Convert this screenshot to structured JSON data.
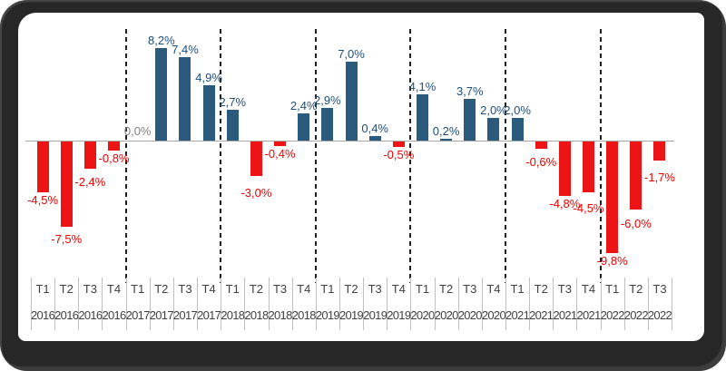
{
  "frame": {
    "background_color": "#272727",
    "panel_color": "#ffffff"
  },
  "chart_data": {
    "type": "bar",
    "title": "",
    "xlabel": "",
    "ylabel": "",
    "legend": "none",
    "grid": "off",
    "ylim": [
      -10.5,
      9
    ],
    "zero_line": true,
    "year_dividers": "dashed vertical lines between year groups",
    "decimal_style": "comma",
    "x_quarters": [
      "T1",
      "T2",
      "T3",
      "T4",
      "T1",
      "T2",
      "T3",
      "T4",
      "T1",
      "T2",
      "T3",
      "T4",
      "T1",
      "T2",
      "T3",
      "T4",
      "T1",
      "T2",
      "T3",
      "T4",
      "T1",
      "T2",
      "T3",
      "T4",
      "T1",
      "T2",
      "T3"
    ],
    "x_years": [
      "2016",
      "2016",
      "2016",
      "2016",
      "2017",
      "2017",
      "2017",
      "2017",
      "2018",
      "2018",
      "2018",
      "2018",
      "2019",
      "2019",
      "2019",
      "2019",
      "2020",
      "2020",
      "2020",
      "2020",
      "2021",
      "2021",
      "2021",
      "2021",
      "2022",
      "2022",
      "2022"
    ],
    "values": [
      -4.5,
      -7.5,
      -2.4,
      -0.8,
      0.0,
      8.2,
      7.4,
      4.9,
      2.7,
      -3.0,
      -0.4,
      2.4,
      2.9,
      7.0,
      0.4,
      -0.5,
      4.1,
      0.2,
      3.7,
      2.0,
      2.0,
      -0.6,
      -4.8,
      -4.5,
      -9.8,
      -6.0,
      -1.7
    ],
    "value_labels": [
      "-4,5%",
      "-7,5%",
      "-2,4%",
      "-0,8%",
      "0,0%",
      "8,2%",
      "7,4%",
      "4,9%",
      "2,7%",
      "-3,0%",
      "-0,4%",
      "2,4%",
      "2,9%",
      "7,0%",
      "0,4%",
      "-0,5%",
      "4,1%",
      "0,2%",
      "3,7%",
      "2,0%",
      "2,0%",
      "-0,6%",
      "-4,8%",
      "-4,5%",
      "-9,8%",
      "-6,0%",
      "-1,7%"
    ],
    "colors": {
      "bar_positive": "#2A5A7C",
      "bar_negative": "#EC1414",
      "label_positive": "#1F4E79",
      "label_negative": "#EE0000",
      "label_zero": "#808080",
      "axis_line": "#A8A8A8",
      "separator": "#C0C0C0",
      "axis_text": "#404040",
      "divider": "#1F1F1F"
    }
  }
}
